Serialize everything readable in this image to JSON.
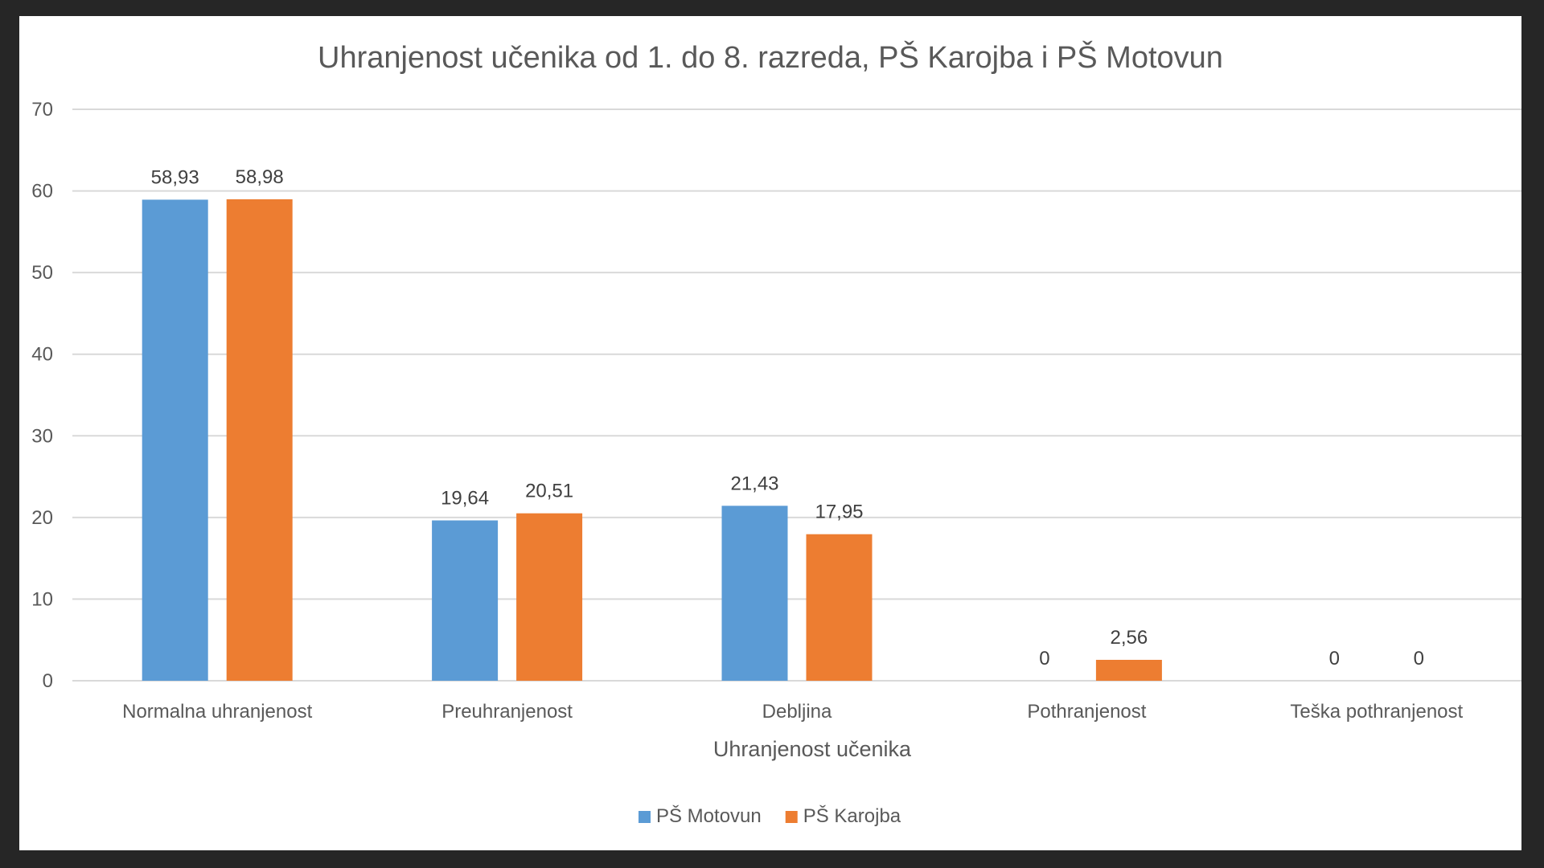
{
  "chart_data": {
    "type": "bar",
    "title": "Uhranjenost učenika od 1. do 8. razreda, PŠ Karojba i PŠ Motovun",
    "xlabel": "Uhranjenost učenika",
    "ylabel": "",
    "categories": [
      "Normalna uhranjenost",
      "Preuhranjenost",
      "Debljina",
      "Pothranjenost",
      "Teška pothranjenost"
    ],
    "series": [
      {
        "name": "PŠ Motovun",
        "color": "#5B9BD5",
        "values": [
          58.93,
          19.64,
          21.43,
          0,
          0
        ],
        "labels": [
          "58,93",
          "19,64",
          "21,43",
          "0",
          "0"
        ]
      },
      {
        "name": "PŠ Karojba",
        "color": "#ED7D31",
        "values": [
          58.98,
          20.51,
          17.95,
          2.56,
          0
        ],
        "labels": [
          "58,98",
          "20,51",
          "17,95",
          "2,56",
          "0"
        ]
      }
    ],
    "ylim": [
      0,
      70
    ],
    "yticks": [
      0,
      10,
      20,
      30,
      40,
      50,
      60,
      70
    ],
    "grid": true,
    "legend_position": "bottom"
  }
}
